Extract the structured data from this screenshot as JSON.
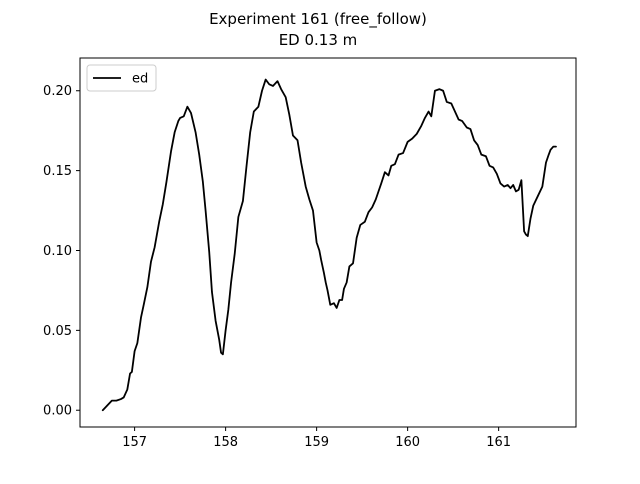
{
  "chart_data": {
    "type": "line",
    "title": "Experiment 161 (free_follow)",
    "subtitle": "ED 0.13 m",
    "xlabel": "",
    "ylabel": "",
    "xlim": [
      156.4,
      161.85
    ],
    "ylim": [
      -0.0105,
      0.2205
    ],
    "xticks": [
      157,
      158,
      159,
      160,
      161
    ],
    "yticks": [
      0.0,
      0.05,
      0.1,
      0.15,
      0.2
    ],
    "xtick_labels": [
      "157",
      "158",
      "159",
      "160",
      "161"
    ],
    "ytick_labels": [
      "0.00",
      "0.05",
      "0.10",
      "0.15",
      "0.20"
    ],
    "grid": false,
    "legend_position": "top-left",
    "series": [
      {
        "name": "ed",
        "color": "#000000",
        "x": [
          156.65,
          156.75,
          156.8,
          156.85,
          156.88,
          156.92,
          156.95,
          156.97,
          157.0,
          157.03,
          157.07,
          157.1,
          157.14,
          157.18,
          157.22,
          157.27,
          157.31,
          157.35,
          157.4,
          157.44,
          157.48,
          157.5,
          157.54,
          157.58,
          157.62,
          157.67,
          157.71,
          157.75,
          157.78,
          157.82,
          157.85,
          157.89,
          157.93,
          157.95,
          157.97,
          158.0,
          158.03,
          158.06,
          158.1,
          158.14,
          158.19,
          158.23,
          158.27,
          158.31,
          158.36,
          158.4,
          158.44,
          158.48,
          158.52,
          158.57,
          158.61,
          158.66,
          158.7,
          158.74,
          158.79,
          158.83,
          158.88,
          158.92,
          158.96,
          159.0,
          159.03,
          159.05,
          159.08,
          159.1,
          159.12,
          159.15,
          159.19,
          159.22,
          159.25,
          159.28,
          159.3,
          159.33,
          159.36,
          159.4,
          159.44,
          159.48,
          159.53,
          159.57,
          159.61,
          159.65,
          159.68,
          159.71,
          159.75,
          159.79,
          159.82,
          159.86,
          159.9,
          159.95,
          160.0,
          160.05,
          160.1,
          160.15,
          160.19,
          160.23,
          160.26,
          160.3,
          160.35,
          160.39,
          160.43,
          160.48,
          160.52,
          160.56,
          160.6,
          160.65,
          160.69,
          160.73,
          160.77,
          160.81,
          160.86,
          160.9,
          160.94,
          160.98,
          161.02,
          161.06,
          161.1,
          161.13,
          161.16,
          161.19,
          161.22,
          161.25,
          161.28,
          161.3,
          161.32,
          161.35,
          161.38,
          161.43,
          161.48,
          161.52,
          161.55,
          161.57,
          161.6,
          161.63
        ],
        "y": [
          0.0,
          0.006,
          0.006,
          0.007,
          0.008,
          0.013,
          0.023,
          0.024,
          0.037,
          0.042,
          0.058,
          0.066,
          0.077,
          0.093,
          0.102,
          0.118,
          0.129,
          0.143,
          0.162,
          0.174,
          0.181,
          0.183,
          0.184,
          0.19,
          0.186,
          0.174,
          0.16,
          0.143,
          0.125,
          0.099,
          0.074,
          0.056,
          0.044,
          0.036,
          0.035,
          0.05,
          0.063,
          0.08,
          0.098,
          0.121,
          0.131,
          0.153,
          0.174,
          0.187,
          0.19,
          0.2,
          0.207,
          0.204,
          0.203,
          0.206,
          0.201,
          0.196,
          0.185,
          0.172,
          0.169,
          0.155,
          0.14,
          0.132,
          0.125,
          0.105,
          0.1,
          0.094,
          0.086,
          0.08,
          0.075,
          0.066,
          0.067,
          0.064,
          0.069,
          0.069,
          0.076,
          0.08,
          0.09,
          0.092,
          0.108,
          0.116,
          0.118,
          0.124,
          0.127,
          0.132,
          0.137,
          0.142,
          0.149,
          0.147,
          0.153,
          0.154,
          0.16,
          0.161,
          0.168,
          0.17,
          0.173,
          0.178,
          0.183,
          0.187,
          0.184,
          0.2,
          0.201,
          0.2,
          0.193,
          0.192,
          0.187,
          0.182,
          0.181,
          0.177,
          0.176,
          0.169,
          0.166,
          0.16,
          0.159,
          0.153,
          0.152,
          0.148,
          0.142,
          0.14,
          0.141,
          0.139,
          0.141,
          0.137,
          0.138,
          0.144,
          0.112,
          0.11,
          0.109,
          0.12,
          0.128,
          0.134,
          0.14,
          0.155,
          0.16,
          0.163,
          0.165,
          0.165
        ]
      }
    ]
  }
}
